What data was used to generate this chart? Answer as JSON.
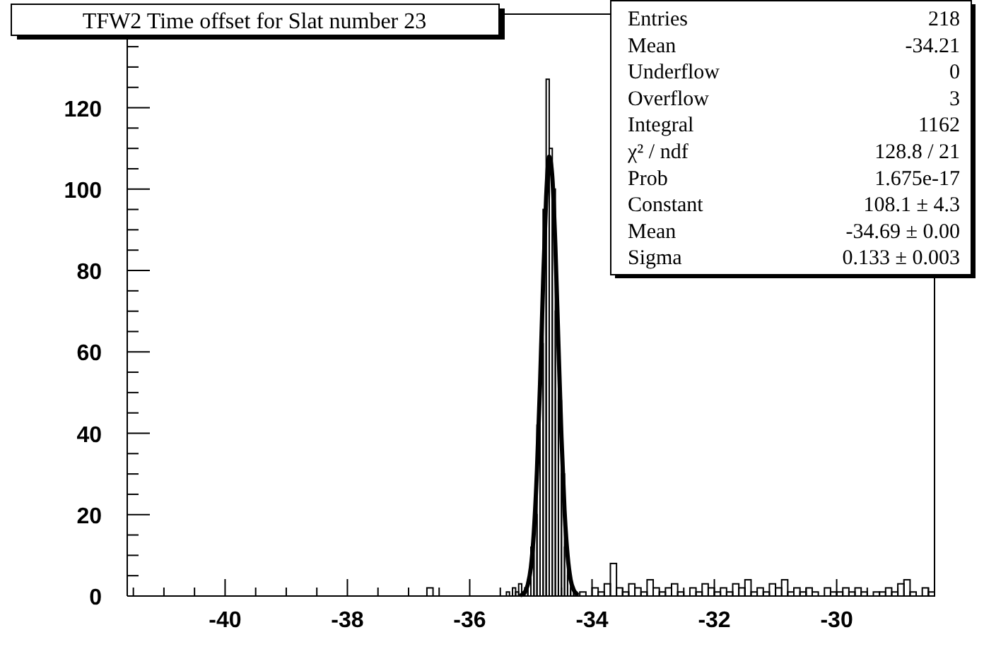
{
  "chart_data": {
    "type": "histogram",
    "title": "TFW2 Time offset for Slat number 23",
    "xlim": [
      -41.6,
      -28.4
    ],
    "ylim": [
      0,
      143
    ],
    "xticks": [
      {
        "value": -41.5,
        "label": null
      },
      {
        "value": -41,
        "label": null
      },
      {
        "value": -40.5,
        "label": null
      },
      -40,
      {
        "value": -39.5,
        "label": null
      },
      {
        "value": -39,
        "label": null
      },
      {
        "value": -38.5,
        "label": null
      },
      -38,
      {
        "value": -37.5,
        "label": null
      },
      {
        "value": -37,
        "label": null
      },
      {
        "value": -36.5,
        "label": null
      },
      -36,
      {
        "value": -35.5,
        "label": null
      },
      {
        "value": -35,
        "label": null
      },
      {
        "value": -34.5,
        "label": null
      },
      -34,
      {
        "value": -33.5,
        "label": null
      },
      {
        "value": -33,
        "label": null
      },
      {
        "value": -32.5,
        "label": null
      },
      -32,
      {
        "value": -31.5,
        "label": null
      },
      {
        "value": -31,
        "label": null
      },
      {
        "value": -30.5,
        "label": null
      },
      -30,
      {
        "value": -29.5,
        "label": null
      },
      {
        "value": -29,
        "label": null
      },
      {
        "value": -28.5,
        "label": null
      }
    ],
    "yticks": [
      0,
      {
        "value": 5,
        "label": null
      },
      {
        "value": 10,
        "label": null
      },
      {
        "value": 15,
        "label": null
      },
      20,
      {
        "value": 25,
        "label": null
      },
      {
        "value": 30,
        "label": null
      },
      {
        "value": 35,
        "label": null
      },
      40,
      {
        "value": 45,
        "label": null
      },
      {
        "value": 50,
        "label": null
      },
      {
        "value": 55,
        "label": null
      },
      60,
      {
        "value": 65,
        "label": null
      },
      {
        "value": 70,
        "label": null
      },
      {
        "value": 75,
        "label": null
      },
      80,
      {
        "value": 85,
        "label": null
      },
      {
        "value": 90,
        "label": null
      },
      {
        "value": 95,
        "label": null
      },
      100,
      {
        "value": 105,
        "label": null
      },
      {
        "value": 110,
        "label": null
      },
      {
        "value": 115,
        "label": null
      },
      120,
      {
        "value": 125,
        "label": null
      },
      {
        "value": 130,
        "label": null
      },
      {
        "value": 135,
        "label": null
      },
      {
        "value": 140,
        "label": null
      }
    ],
    "series": [
      {
        "color": "#000000",
        "bins": [
          -36.7,
          -36.6
        ],
        "values": [
          2
        ]
      },
      {
        "color": "#000000",
        "bins": [
          -35.4,
          -35.35,
          -35.3,
          -35.25,
          -35.2,
          -35.15,
          -35.1,
          -35.05,
          -35,
          -34.95,
          -34.9,
          -34.85,
          -34.8,
          -34.75,
          -34.7,
          -34.65,
          -34.6,
          -34.55,
          -34.5,
          -34.45,
          -34.4,
          -34.35,
          -34.3,
          -34.25,
          -34.2,
          -34.1,
          -34,
          -33.9,
          -33.8,
          -33.7,
          -33.6,
          -33.5,
          -33.4,
          -33.3,
          -33.2,
          -33.1,
          -33,
          -32.9,
          -32.8,
          -32.7,
          -32.6,
          -32.5,
          -32.4,
          -32.3,
          -32.2,
          -32.1,
          -32,
          -31.9,
          -31.8,
          -31.7,
          -31.6,
          -31.5,
          -31.4,
          -31.3,
          -31.2,
          -31.1,
          -31,
          -30.9,
          -30.8,
          -30.7,
          -30.6,
          -30.5,
          -30.4,
          -30.3,
          -30.2,
          -30.1,
          -30,
          -29.9,
          -29.8,
          -29.7,
          -29.6,
          -29.5,
          -29.4,
          -29.3,
          -29.2,
          -29.1,
          -29,
          -28.9,
          -28.8,
          -28.7,
          -28.6,
          -28.5,
          -28.4
        ],
        "values": [
          1,
          0,
          2,
          1,
          3,
          1,
          2,
          4,
          12,
          20,
          42,
          62,
          95,
          127,
          110,
          100,
          70,
          48,
          30,
          12,
          5,
          2,
          1,
          0,
          1,
          0,
          2,
          1,
          3,
          8,
          2,
          1,
          3,
          2,
          1,
          4,
          2,
          1,
          2,
          3,
          1,
          0,
          2,
          1,
          3,
          2,
          1,
          2,
          1,
          3,
          2,
          4,
          1,
          2,
          1,
          3,
          2,
          4,
          1,
          2,
          1,
          2,
          1,
          0,
          2,
          1,
          1,
          2,
          1,
          2,
          1,
          0,
          1,
          1,
          2,
          1,
          3,
          4,
          1,
          0,
          2,
          1
        ]
      },
      {
        "type": "line",
        "color": "#000000",
        "x": [
          -35.15,
          -35.1,
          -35.05,
          -35,
          -34.95,
          -34.9,
          -34.85,
          -34.8,
          -34.75,
          -34.7,
          -34.65,
          -34.6,
          -34.55,
          -34.5,
          -34.45,
          -34.4,
          -34.35,
          -34.3,
          -34.25
        ],
        "values": [
          0.3,
          0.9,
          2.8,
          7,
          16,
          31,
          52,
          77,
          98,
          108,
          103,
          86,
          62,
          39,
          21,
          10,
          4,
          1.5,
          0.5
        ]
      }
    ],
    "annotations": [
      "Entries\t218",
      "Mean\t-34.21",
      "Underflow\t0",
      "Overflow\t3",
      "Integral\t1162",
      "χ² / ndf\t128.8 / 21",
      "Prob\t1.675e-17",
      "Constant\t108.1 ± 4.3",
      "Mean\t-34.69 ± 0.00",
      "Sigma\t0.133 ± 0.003"
    ],
    "grid": false
  }
}
